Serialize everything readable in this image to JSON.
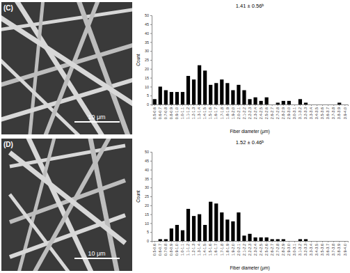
{
  "chart_data": [
    {
      "type": "bar",
      "title": "1.41 ± 0.56ᵇ",
      "x_label": "Fiber diameter (μm)",
      "y_label": "Count",
      "annotations": [
        "(C)",
        "10 μm"
      ],
      "categories": [
        "0.5-0.6",
        "0.6-0.7",
        "0.7-0.8",
        "0.8-0.9",
        "0.9-1.0",
        "1.0-1.1",
        "1.1-1.2",
        "1.2-1.3",
        "1.3-1.4",
        "1.4-1.5",
        "1.5-1.6",
        "1.6-1.7",
        "1.7-1.8",
        "1.8-1.9",
        "1.9-2.0",
        "2.0-2.1",
        "2.1-2.2",
        "2.2-2.3",
        "2.3-2.4",
        "2.4-2.5",
        "2.5-2.6",
        "2.6-2.7",
        "2.7-2.8",
        "2.8-2.9",
        "2.9-3.0",
        "3.0-3.1",
        "3.1-3.2",
        "3.2-3.3",
        "3.3-3.4",
        "3.4-3.5",
        "3.5-3.6",
        "3.6-3.7",
        "3.7-3.8",
        "3.8-3.9",
        "3.9-4.0"
      ],
      "values": [
        3,
        10,
        8,
        7,
        7,
        7,
        16,
        14,
        22,
        19,
        11,
        12,
        14,
        12,
        8,
        11,
        8,
        3,
        4,
        2,
        4,
        0,
        1,
        2,
        2,
        0,
        3,
        1,
        0,
        0,
        0,
        0,
        0,
        1,
        0
      ],
      "color": "#000000",
      "ylim": [
        0,
        50
      ],
      "yticks": [
        0,
        5,
        10,
        15,
        20,
        25,
        30,
        35,
        40,
        45,
        50
      ],
      "grid": false
    },
    {
      "type": "bar",
      "title": "1.52 ± 0.46ᵇ",
      "x_label": "Fiber diameter (μm)",
      "y_label": "Count",
      "annotations": [
        "(D)",
        "10 μm"
      ],
      "categories": [
        "0.5-0.6",
        "0.6-0.7",
        "0.7-0.8",
        "0.8-0.9",
        "0.9-1.0",
        "1.0-1.1",
        "1.1-1.2",
        "1.2-1.3",
        "1.3-1.4",
        "1.4-1.5",
        "1.5-1.6",
        "1.6-1.7",
        "1.7-1.8",
        "1.8-1.9",
        "1.9-2.0",
        "2.0-2.1",
        "2.1-2.2",
        "2.2-2.3",
        "2.3-2.4",
        "2.4-2.5",
        "2.5-2.6",
        "2.6-2.7",
        "2.7-2.8",
        "2.8-2.9",
        "2.9-3.0",
        "3.0-3.1",
        "3.1-3.2",
        "3.2-3.3",
        "3.3-3.4",
        "3.4-3.5",
        "3.5-3.6",
        "3.6-3.7",
        "3.7-3.8",
        "3.8-3.9",
        "3.9-4.0"
      ],
      "values": [
        0,
        1,
        1,
        7,
        9,
        6,
        18,
        14,
        15,
        9,
        22,
        21,
        16,
        12,
        11,
        16,
        3,
        4,
        2,
        2,
        2,
        1,
        1,
        1,
        0,
        0,
        1,
        1,
        0,
        0,
        0,
        0,
        0,
        0,
        0
      ],
      "color": "#000000",
      "ylim": [
        0,
        50
      ],
      "yticks": [
        0,
        5,
        10,
        15,
        20,
        25,
        30,
        35,
        40,
        45,
        50
      ],
      "grid": false
    }
  ]
}
